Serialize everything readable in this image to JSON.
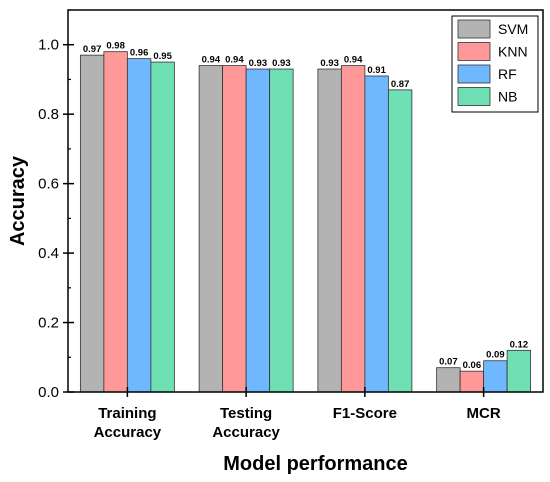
{
  "chart_data": {
    "type": "bar",
    "categories": [
      [
        "Training",
        "Accuracy"
      ],
      [
        "Testing",
        "Accuracy"
      ],
      [
        "F1-Score"
      ],
      [
        "MCR"
      ]
    ],
    "series": [
      {
        "name": "SVM",
        "color": "#b3b3b3",
        "values": [
          0.97,
          0.94,
          0.93,
          0.07
        ],
        "labels": [
          "0.97",
          "0.94",
          "0.93",
          "0.07"
        ]
      },
      {
        "name": "KNN",
        "color": "#ff9999",
        "values": [
          0.98,
          0.94,
          0.94,
          0.06
        ],
        "labels": [
          "0.98",
          "0.94",
          "0.94",
          "0.06"
        ]
      },
      {
        "name": "RF",
        "color": "#6fb8ff",
        "values": [
          0.96,
          0.93,
          0.91,
          0.09
        ],
        "labels": [
          "0.96",
          "0.93",
          "0.91",
          "0.09"
        ]
      },
      {
        "name": "NB",
        "color": "#6ee0b4",
        "values": [
          0.95,
          0.93,
          0.87,
          0.12
        ],
        "labels": [
          "0.95",
          "0.93",
          "0.87",
          "0.12"
        ]
      }
    ],
    "xlabel": "Model performance",
    "ylabel": "Accuracy",
    "ylim": [
      0,
      1.1
    ],
    "yticks": [
      "0.0",
      "0.2",
      "0.4",
      "0.6",
      "0.8",
      "1.0"
    ],
    "grid": false,
    "legend_position": "top-right"
  }
}
